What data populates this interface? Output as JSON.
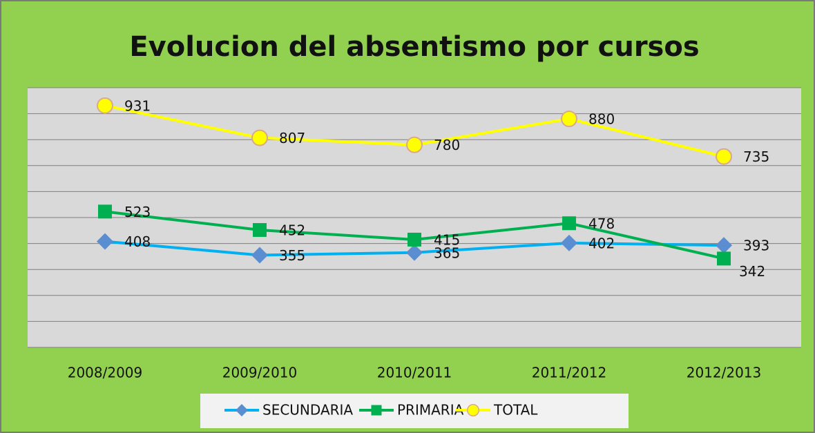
{
  "chart_data": {
    "type": "line",
    "title": "Evolucion del absentismo por cursos",
    "categories": [
      "2008/2009",
      "2009/2010",
      "2010/2011",
      "2011/2012",
      "2012/2013"
    ],
    "series": [
      {
        "name": "SECUNDARIA",
        "color": "#00b0f0",
        "marker_color": "#5b8ed0",
        "marker": "diamond",
        "values": [
          408,
          355,
          365,
          402,
          393
        ]
      },
      {
        "name": "PRIMARIA",
        "color": "#00b050",
        "marker_color": "#00b050",
        "marker": "square",
        "values": [
          523,
          452,
          415,
          478,
          342
        ]
      },
      {
        "name": "TOTAL",
        "color": "#ffff00",
        "marker_color": "#ffff00",
        "marker": "circle",
        "values": [
          931,
          807,
          780,
          880,
          735
        ]
      }
    ],
    "ylim": [
      0,
      1000
    ],
    "yticks": [
      0,
      100,
      200,
      300,
      400,
      500,
      600,
      700,
      800,
      900,
      1000
    ],
    "grid": true,
    "legend": "bottom"
  }
}
